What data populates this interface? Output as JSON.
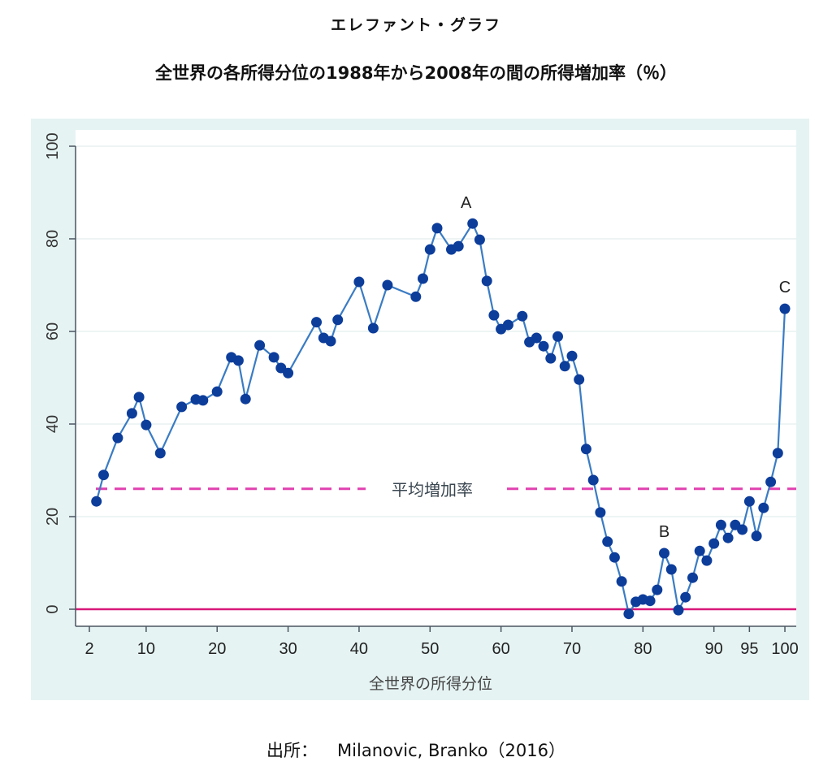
{
  "title": "エレファント・グラフ",
  "subtitle": "全世界の各所得分位の1988年から2008年の間の所得増加率（％）",
  "source_label": "出所：",
  "source_text": "Milanovic, Branko（2016）",
  "colors": {
    "panel_bg": "#e6f3f3",
    "plot_bg": "#ffffff",
    "series": "#3a7cc4",
    "marker": "#0d3d9a",
    "average_line": "#e040b0",
    "zero_line": "#d8187a"
  },
  "chart_data": {
    "type": "line",
    "title": "エレファント・グラフ",
    "subtitle": "全世界の各所得分位の1988年から2008年の間の所得増加率（％）",
    "xlabel": "全世界の所得分位",
    "ylabel": "",
    "xlim": [
      0,
      101.5
    ],
    "ylim": [
      -4,
      103
    ],
    "grid": true,
    "x_ticks": [
      2,
      10,
      20,
      30,
      40,
      50,
      60,
      70,
      80,
      90,
      95,
      100
    ],
    "x_tick_labels": [
      "2",
      "10",
      "20",
      "30",
      "40",
      "50",
      "60",
      "70",
      "80",
      "90",
      "95",
      "100"
    ],
    "y_ticks": [
      0,
      20,
      40,
      60,
      80,
      100
    ],
    "y_tick_labels": [
      "0",
      "20",
      "40",
      "60",
      "80",
      "100"
    ],
    "reference_lines": [
      {
        "name": "平均増加率",
        "label": "平均増加率",
        "y": 26,
        "style": "dashed"
      },
      {
        "name": "zero",
        "label": "",
        "y": 0,
        "style": "solid"
      }
    ],
    "annotations": [
      {
        "text": "A",
        "x": 56,
        "y": 83.3
      },
      {
        "text": "B",
        "x": 83,
        "y": 12.1
      },
      {
        "text": "C",
        "x": 100,
        "y": 64.9
      }
    ],
    "series": [
      {
        "name": "所得増加率",
        "x": [
          3,
          4,
          6,
          8,
          9,
          10,
          12,
          15,
          17,
          18,
          20,
          22,
          23,
          24,
          26,
          28,
          29,
          30,
          34,
          35,
          36,
          37,
          40,
          42,
          44,
          48,
          49,
          50,
          51,
          53,
          54,
          56,
          57,
          58,
          59,
          60,
          61,
          63,
          64,
          65,
          66,
          67,
          68,
          69,
          70,
          71,
          72,
          73,
          74,
          75,
          76,
          77,
          78,
          79,
          80,
          81,
          82,
          83,
          84,
          85,
          86,
          87,
          88,
          89,
          90,
          91,
          92,
          93,
          94,
          95,
          96,
          97,
          98,
          99,
          100
        ],
        "values": [
          23.3,
          29,
          37,
          42.3,
          45.8,
          39.8,
          33.7,
          43.7,
          45.3,
          45.1,
          47,
          54.4,
          53.7,
          45.4,
          57,
          54.4,
          52.1,
          51,
          62,
          58.6,
          57.9,
          62.5,
          70.7,
          60.7,
          70,
          67.5,
          71.4,
          77.7,
          82.3,
          77.7,
          78.4,
          83.3,
          79.8,
          70.9,
          63.5,
          60.5,
          61.4,
          63.3,
          57.7,
          58.6,
          56.8,
          54.2,
          58.9,
          52.5,
          54.7,
          49.6,
          34.6,
          27.9,
          20.9,
          14.6,
          11.2,
          6,
          -1,
          1.6,
          2.1,
          1.8,
          4.2,
          12.1,
          8.6,
          -0.2,
          2.6,
          6.8,
          12.6,
          10.5,
          14.2,
          18.2,
          15.4,
          18.2,
          17.2,
          23.3,
          15.8,
          21.9,
          27.5,
          33.7,
          64.9
        ]
      }
    ]
  }
}
